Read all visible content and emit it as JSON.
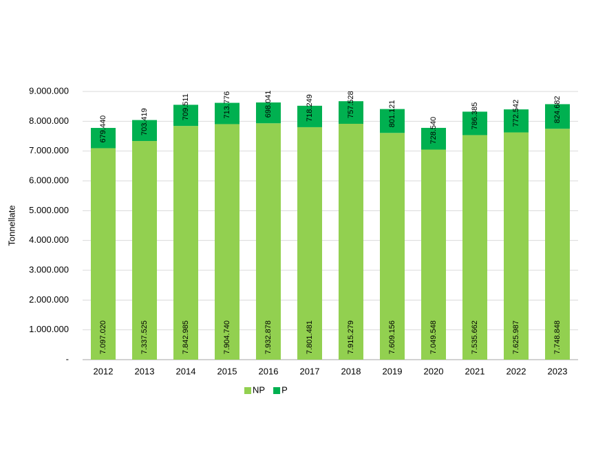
{
  "chart_data": {
    "type": "stacked_bar",
    "y_label": "Tonnellate",
    "categories": [
      "2012",
      "2013",
      "2014",
      "2015",
      "2016",
      "2017",
      "2018",
      "2019",
      "2020",
      "2021",
      "2022",
      "2023"
    ],
    "series": [
      {
        "name": "NP",
        "color": "#92d050",
        "values": [
          7097020,
          7337525,
          7842985,
          7904740,
          7932878,
          7801481,
          7915279,
          7609156,
          7049548,
          7535662,
          7625987,
          7748848
        ],
        "value_labels": [
          "7.097.020",
          "7.337.525",
          "7.842.985",
          "7.904.740",
          "7.932.878",
          "7.801.481",
          "7.915.279",
          "7.609.156",
          "7.049.548",
          "7.535.662",
          "7.625.987",
          "7.748.848"
        ]
      },
      {
        "name": "P",
        "color": "#00b050",
        "values": [
          679440,
          703419,
          709511,
          713776,
          698041,
          718249,
          757528,
          801121,
          728540,
          786385,
          772542,
          824682
        ],
        "value_labels": [
          "679.440",
          "703.419",
          "709.511",
          "713.776",
          "698.041",
          "718.249",
          "757.528",
          "801.121",
          "728.540",
          "786.385",
          "772.542",
          "824.682"
        ]
      }
    ],
    "ylim": [
      0,
      9000000
    ],
    "yticks": [
      {
        "value": 0,
        "label": "-"
      },
      {
        "value": 1000000,
        "label": "1.000.000"
      },
      {
        "value": 2000000,
        "label": "2.000.000"
      },
      {
        "value": 3000000,
        "label": "3.000.000"
      },
      {
        "value": 4000000,
        "label": "4.000.000"
      },
      {
        "value": 5000000,
        "label": "5.000.000"
      },
      {
        "value": 6000000,
        "label": "6.000.000"
      },
      {
        "value": 7000000,
        "label": "7.000.000"
      },
      {
        "value": 8000000,
        "label": "8.000.000"
      },
      {
        "value": 9000000,
        "label": "9.000.000"
      }
    ],
    "grid": true,
    "legend": "bottom"
  }
}
